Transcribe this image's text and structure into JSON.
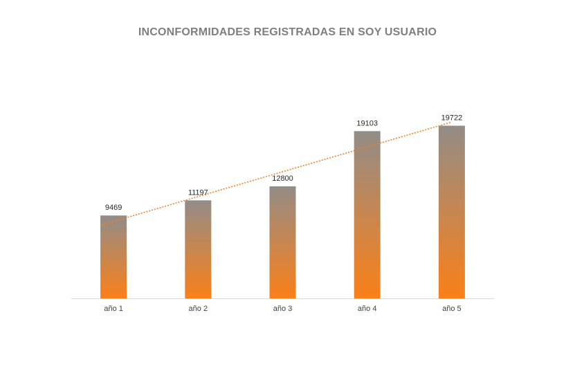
{
  "chart_data": {
    "type": "bar",
    "title": "INCONFORMIDADES REGISTRADAS EN SOY USUARIO",
    "categories": [
      "año 1",
      "año 2",
      "año 3",
      "año 4",
      "año 5"
    ],
    "values": [
      9469,
      11197,
      12800,
      19103,
      19722
    ],
    "data_labels": [
      "9469",
      "11197",
      "12800",
      "19103",
      "19722"
    ],
    "ylim": [
      0,
      20000
    ],
    "grid": false,
    "legend": "none",
    "trendline": "linear",
    "colors": {
      "bar_top": "#938c87",
      "bar_bottom": "#fb8019",
      "trendline": "#f0832a",
      "axis": "#d9d9d9",
      "title": "#7f7f7f"
    }
  }
}
